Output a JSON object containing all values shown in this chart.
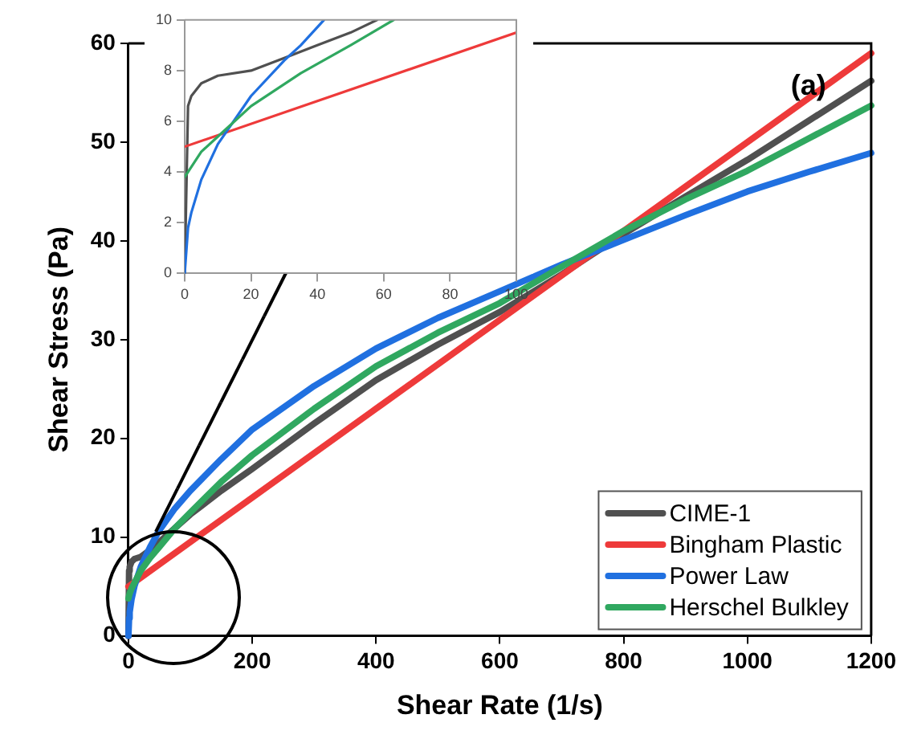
{
  "chart_data": [
    {
      "type": "line",
      "xlabel": "Shear Rate (1/s)",
      "ylabel": "Shear Stress (Pa)",
      "xlim": [
        0,
        1200
      ],
      "xticks": [
        0,
        200,
        400,
        600,
        800,
        1000,
        1200
      ],
      "ylim": [
        0,
        60
      ],
      "yticks": [
        0,
        10,
        20,
        30,
        40,
        50,
        60
      ],
      "grid": false,
      "legend": "bottom right",
      "annotations": [
        "(a)"
      ],
      "series": [
        {
          "name": "CIME-1",
          "color": "#505050",
          "x": [
            0,
            1,
            2,
            5,
            10,
            20,
            35,
            50,
            75,
            100,
            150,
            200,
            300,
            400,
            500,
            600,
            700,
            800,
            900,
            1000,
            1100,
            1200
          ],
          "values": [
            0,
            6.6,
            7.0,
            7.5,
            7.8,
            8.0,
            8.7,
            9.5,
            10.9,
            12.3,
            14.7,
            16.9,
            21.5,
            25.9,
            29.5,
            32.8,
            36.6,
            40.7,
            44.5,
            48.2,
            52.2,
            56.2
          ]
        },
        {
          "name": "Bingham Plastic",
          "color": "#ee3a3a",
          "x": [
            0,
            100,
            200,
            400,
            600,
            800,
            1000,
            1200
          ],
          "values": [
            5,
            9.5,
            14,
            23,
            32,
            41,
            50,
            59
          ]
        },
        {
          "name": "Power Law",
          "color": "#2070e0",
          "x": [
            0,
            1,
            2,
            5,
            10,
            20,
            35,
            50,
            75,
            100,
            150,
            200,
            300,
            400,
            500,
            600,
            700,
            800,
            900,
            1000,
            1100,
            1200
          ],
          "values": [
            0,
            1.8,
            2.4,
            3.7,
            5.1,
            7.0,
            9.0,
            10.7,
            12.9,
            14.7,
            17.9,
            20.9,
            25.3,
            29.1,
            32.2,
            34.9,
            37.6,
            40.1,
            42.6,
            45.0,
            47.0,
            48.9
          ]
        },
        {
          "name": "Herschel Bulkley",
          "color": "#30a860",
          "x": [
            0,
            2,
            5,
            10,
            20,
            35,
            50,
            75,
            100,
            150,
            200,
            300,
            400,
            500,
            600,
            700,
            800,
            900,
            1000,
            1100,
            1200
          ],
          "values": [
            3.8,
            4.3,
            4.8,
            5.4,
            6.6,
            7.9,
            9.0,
            10.9,
            12.5,
            15.6,
            18.3,
            23.0,
            27.3,
            30.7,
            33.7,
            37.4,
            41.0,
            44.2,
            47.1,
            50.4,
            53.7
          ]
        }
      ]
    },
    {
      "type": "line",
      "xlim": [
        0,
        100
      ],
      "xticks": [
        0,
        20,
        40,
        60,
        80,
        100
      ],
      "ylim": [
        0,
        10
      ],
      "yticks": [
        0,
        2,
        4,
        6,
        8,
        10
      ],
      "grid": false,
      "series": [
        {
          "color": "#505050",
          "x": [
            0,
            1,
            2,
            5,
            10,
            20,
            30,
            40,
            50,
            58
          ],
          "values": [
            0,
            6.6,
            7.0,
            7.5,
            7.8,
            8.0,
            8.5,
            9.0,
            9.5,
            10
          ]
        },
        {
          "color": "#ee3a3a",
          "x": [
            0,
            100
          ],
          "values": [
            5,
            9.5
          ]
        },
        {
          "color": "#2070e0",
          "x": [
            0,
            1,
            2,
            5,
            10,
            20,
            30,
            35,
            42
          ],
          "values": [
            0,
            1.8,
            2.4,
            3.7,
            5.1,
            7.0,
            8.4,
            9.0,
            10
          ]
        },
        {
          "color": "#30a860",
          "x": [
            0,
            5,
            10,
            20,
            35,
            50,
            63
          ],
          "values": [
            3.8,
            4.8,
            5.4,
            6.6,
            7.9,
            9.0,
            10
          ]
        }
      ]
    }
  ]
}
